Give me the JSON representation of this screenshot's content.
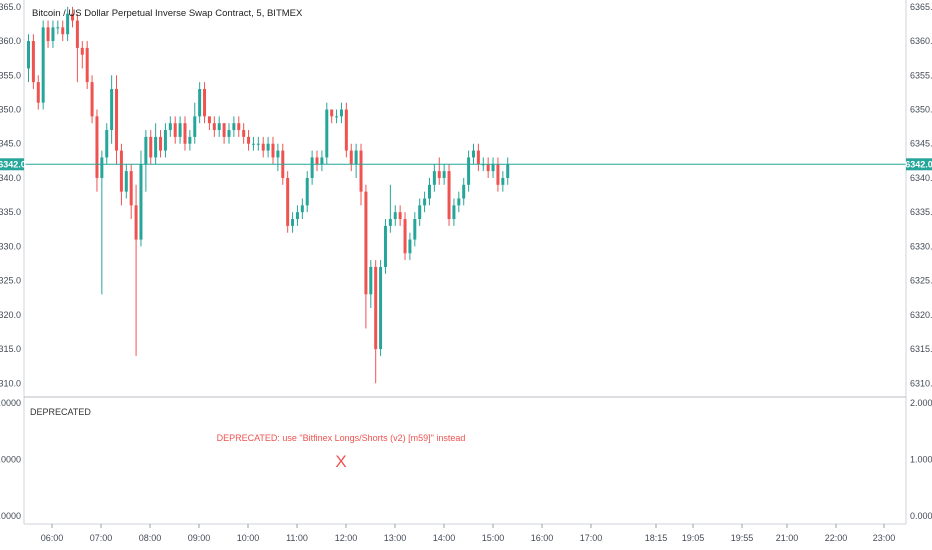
{
  "chart_data": [
    {
      "type": "candlestick",
      "title": "Bitcoin / US Dollar Perpetual Inverse Swap Contract, 5, BITMEX",
      "last_price_label": "6342.0",
      "ylim": [
        6308,
        6366
      ],
      "y_ticks": [
        "6365.0",
        "6360.0",
        "6355.0",
        "6350.0",
        "6345.0",
        "6340.0",
        "6335.0",
        "6330.0",
        "6325.0",
        "6320.0",
        "6315.0",
        "6310.0"
      ],
      "x_ticks": [
        "06:00",
        "07:00",
        "08:00",
        "09:00",
        "10:00",
        "11:00",
        "12:00",
        "13:00",
        "14:00",
        "15:00",
        "16:00",
        "17:00",
        "18:15",
        "19:05",
        "19:55",
        "21:00",
        "22:00",
        "23:00"
      ],
      "colors": {
        "up": "#26a69a",
        "down": "#ef5350",
        "price_line": "#26a69a"
      },
      "candles": [
        [
          6356,
          6360,
          6361,
          6354
        ],
        [
          6360,
          6354,
          6361,
          6353
        ],
        [
          6354,
          6351,
          6355,
          6350
        ],
        [
          6351,
          6362,
          6363,
          6350
        ],
        [
          6362,
          6360,
          6363,
          6359
        ],
        [
          6360,
          6362,
          6363,
          6359
        ],
        [
          6362,
          6362,
          6363,
          6361
        ],
        [
          6362,
          6361,
          6363,
          6360
        ],
        [
          6361,
          6364,
          6365,
          6360
        ],
        [
          6364,
          6363,
          6365,
          6362
        ],
        [
          6363,
          6359,
          6364,
          6354
        ],
        [
          6359,
          6358,
          6360,
          6356
        ],
        [
          6359,
          6354,
          6360,
          6353
        ],
        [
          6354,
          6349,
          6355,
          6348
        ],
        [
          6349,
          6340,
          6350,
          6338
        ],
        [
          6340,
          6343,
          6344,
          6323
        ],
        [
          6343,
          6347,
          6348,
          6342
        ],
        [
          6347,
          6353,
          6355,
          6345
        ],
        [
          6353,
          6344,
          6355,
          6342
        ],
        [
          6344,
          6338,
          6345,
          6336
        ],
        [
          6338,
          6341,
          6342,
          6337
        ],
        [
          6341,
          6336,
          6342,
          6334
        ],
        [
          6336,
          6331,
          6339,
          6314
        ],
        [
          6331,
          6342,
          6344,
          6330
        ],
        [
          6342,
          6346,
          6347,
          6338
        ],
        [
          6346,
          6343,
          6347,
          6342
        ],
        [
          6343,
          6346,
          6348,
          6342
        ],
        [
          6346,
          6344,
          6347,
          6343
        ],
        [
          6344,
          6347,
          6348,
          6343
        ],
        [
          6347,
          6348,
          6349,
          6346
        ],
        [
          6348,
          6346,
          6349,
          6345
        ],
        [
          6346,
          6348,
          6349,
          6345
        ],
        [
          6348,
          6345,
          6349,
          6344
        ],
        [
          6345,
          6346,
          6347,
          6344
        ],
        [
          6346,
          6349,
          6351,
          6345
        ],
        [
          6349,
          6353,
          6354,
          6348
        ],
        [
          6353,
          6349,
          6354,
          6348
        ],
        [
          6349,
          6348,
          6349,
          6347
        ],
        [
          6348,
          6347,
          6349,
          6346
        ],
        [
          6347,
          6348,
          6349,
          6346
        ],
        [
          6348,
          6346,
          6348,
          6345
        ],
        [
          6346,
          6347,
          6348,
          6345
        ],
        [
          6347,
          6348,
          6349,
          6346
        ],
        [
          6348,
          6347,
          6349,
          6346
        ],
        [
          6347,
          6346,
          6348,
          6345
        ],
        [
          6346,
          6345,
          6347,
          6344
        ],
        [
          6345,
          6345,
          6346,
          6344
        ],
        [
          6345,
          6345,
          6346,
          6344
        ],
        [
          6345,
          6344,
          6346,
          6343
        ],
        [
          6344,
          6345,
          6346,
          6343
        ],
        [
          6345,
          6343,
          6346,
          6342
        ],
        [
          6343,
          6344,
          6345,
          6341
        ],
        [
          6344,
          6340,
          6345,
          6339
        ],
        [
          6340,
          6333,
          6341,
          6332
        ],
        [
          6333,
          6334,
          6335,
          6332
        ],
        [
          6334,
          6335,
          6336,
          6333
        ],
        [
          6335,
          6336,
          6337,
          6334
        ],
        [
          6336,
          6340,
          6341,
          6335
        ],
        [
          6340,
          6343,
          6344,
          6339
        ],
        [
          6343,
          6342,
          6344,
          6341
        ],
        [
          6342,
          6343,
          6344,
          6341
        ],
        [
          6343,
          6350,
          6351,
          6342
        ],
        [
          6350,
          6349,
          6350,
          6348
        ],
        [
          6349,
          6349,
          6350,
          6348
        ],
        [
          6349,
          6350,
          6351,
          6348
        ],
        [
          6350,
          6344,
          6351,
          6343
        ],
        [
          6344,
          6342,
          6345,
          6341
        ],
        [
          6342,
          6344,
          6345,
          6340
        ],
        [
          6344,
          6338,
          6345,
          6336
        ],
        [
          6338,
          6323,
          6339,
          6318
        ],
        [
          6323,
          6327,
          6328,
          6321
        ],
        [
          6327,
          6315,
          6328,
          6310
        ],
        [
          6315,
          6327,
          6328,
          6314
        ],
        [
          6327,
          6333,
          6334,
          6326
        ],
        [
          6333,
          6334,
          6339,
          6332
        ],
        [
          6334,
          6335,
          6336,
          6333
        ],
        [
          6335,
          6334,
          6336,
          6333
        ],
        [
          6334,
          6329,
          6335,
          6328
        ],
        [
          6329,
          6331,
          6332,
          6328
        ],
        [
          6331,
          6334,
          6335,
          6330
        ],
        [
          6334,
          6336,
          6337,
          6333
        ],
        [
          6336,
          6337,
          6338,
          6335
        ],
        [
          6337,
          6339,
          6340,
          6336
        ],
        [
          6339,
          6341,
          6342,
          6338
        ],
        [
          6341,
          6340,
          6343,
          6339
        ],
        [
          6340,
          6341,
          6342,
          6339
        ],
        [
          6341,
          6334,
          6342,
          6333
        ],
        [
          6334,
          6336,
          6337,
          6333
        ],
        [
          6336,
          6337,
          6338,
          6335
        ],
        [
          6337,
          6339,
          6340,
          6336
        ],
        [
          6339,
          6343,
          6344,
          6338
        ],
        [
          6343,
          6344,
          6345,
          6342
        ],
        [
          6344,
          6342,
          6345,
          6341
        ],
        [
          6342,
          6342,
          6343,
          6341
        ],
        [
          6342,
          6341,
          6343,
          6340
        ],
        [
          6341,
          6342,
          6343,
          6340
        ],
        [
          6342,
          6339,
          6343,
          6338
        ],
        [
          6339,
          6340,
          6341,
          6338
        ],
        [
          6340,
          6342,
          6343,
          6339
        ]
      ]
    },
    {
      "type": "indicator",
      "name": "DEPRECATED",
      "message": "DEPRECATED: use \"Bitfinex Longs/Shorts (v2) [m59]\" instead",
      "marker": "X",
      "ylim": [
        0,
        2
      ],
      "y_ticks": [
        "2.0000",
        "1.0000",
        "0.0000"
      ]
    }
  ]
}
